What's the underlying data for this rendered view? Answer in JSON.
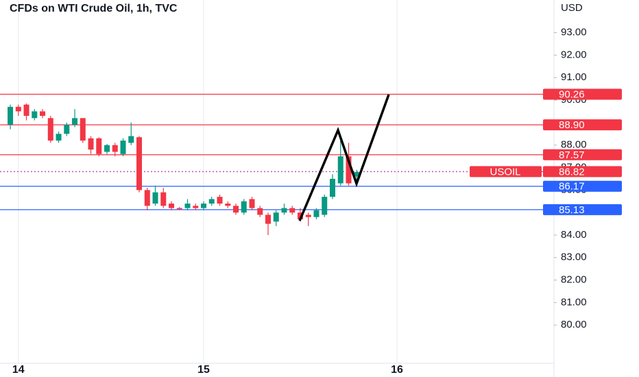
{
  "chart_data": {
    "type": "candlestick",
    "title": "CFDs on WTI Crude Oil, 1h, TVC",
    "currency": "USD",
    "up_color": "#089981",
    "down_color": "#f23645",
    "open": [
      88.9,
      89.7,
      89.8,
      89.2,
      89.5,
      89.2,
      88.2,
      88.5,
      88.9,
      89.2,
      88.3,
      88.3,
      87.7,
      88.0,
      87.6,
      88.1,
      88.35,
      86.0,
      85.4,
      85.9,
      85.4,
      85.2,
      85.2,
      85.3,
      85.2,
      85.4,
      85.7,
      85.4,
      85.3,
      85.0,
      85.6,
      85.2,
      84.9,
      84.6,
      85.0,
      85.2,
      85.0,
      84.9,
      84.8,
      84.9,
      85.7,
      86.3,
      87.5,
      86.6
    ],
    "high": [
      89.8,
      89.8,
      89.85,
      89.6,
      89.6,
      89.3,
      88.6,
      89.0,
      89.6,
      89.2,
      88.4,
      88.35,
      88.05,
      88.1,
      88.3,
      89.0,
      88.4,
      86.1,
      86.2,
      86.1,
      85.5,
      85.25,
      85.6,
      85.4,
      85.5,
      85.7,
      85.8,
      85.5,
      85.4,
      85.6,
      85.7,
      85.3,
      85.0,
      85.1,
      85.4,
      85.3,
      85.2,
      85.0,
      85.2,
      85.8,
      86.7,
      88.2,
      88.1,
      86.9
    ],
    "low": [
      88.7,
      89.3,
      89.1,
      89.1,
      89.2,
      88.1,
      88.1,
      88.4,
      88.8,
      88.1,
      87.6,
      87.5,
      87.6,
      87.5,
      87.5,
      88.0,
      85.9,
      85.1,
      85.3,
      85.2,
      85.1,
      85.1,
      85.1,
      85.1,
      85.1,
      85.3,
      85.3,
      85.2,
      84.9,
      84.9,
      85.1,
      84.8,
      84.0,
      84.4,
      84.9,
      84.9,
      84.6,
      84.4,
      84.7,
      84.8,
      85.6,
      86.2,
      86.2,
      86.4
    ],
    "close": [
      89.7,
      89.5,
      89.3,
      89.5,
      89.3,
      88.2,
      88.5,
      88.9,
      89.2,
      88.2,
      87.8,
      87.6,
      88.0,
      87.7,
      88.2,
      88.4,
      86.0,
      85.3,
      85.9,
      85.3,
      85.2,
      85.15,
      85.4,
      85.2,
      85.4,
      85.6,
      85.4,
      85.3,
      85.0,
      85.5,
      85.2,
      84.9,
      84.5,
      85.0,
      85.2,
      85.0,
      84.7,
      84.8,
      85.1,
      85.7,
      86.5,
      87.5,
      86.3,
      86.8
    ],
    "xlim": [
      -2.28,
      64.96
    ],
    "xticks": [
      {
        "value": 0,
        "label": "14"
      },
      {
        "value": 23,
        "label": "15"
      },
      {
        "value": 47,
        "label": "16"
      }
    ],
    "ylim": [
      78.3,
      94.45
    ],
    "yticks": [
      {
        "value": 80,
        "label": "80.00"
      },
      {
        "value": 81,
        "label": "81.00"
      },
      {
        "value": 82,
        "label": "82.00"
      },
      {
        "value": 83,
        "label": "83.00"
      },
      {
        "value": 84,
        "label": "84.00"
      },
      {
        "value": 86,
        "label": "86.00"
      },
      {
        "value": 87,
        "label": "87.00"
      },
      {
        "value": 88,
        "label": "88.00"
      },
      {
        "value": 90,
        "label": "90.00"
      },
      {
        "value": 91,
        "label": "91.00"
      },
      {
        "value": 92,
        "label": "92.00"
      },
      {
        "value": 93,
        "label": "93.00"
      }
    ],
    "price_lines": [
      {
        "value": 90.26,
        "color": "#f23645"
      },
      {
        "value": 88.9,
        "label": "88.90",
        "color": "#f23645"
      },
      {
        "value": 87.57,
        "color": "#f23645"
      },
      {
        "value": 86.17,
        "color": "#2962ff"
      },
      {
        "value": 85.13,
        "color": "#2962ff"
      }
    ],
    "last_price": {
      "value": 86.82,
      "symbol": "USOIL",
      "color": "#f23645",
      "line_color": "#b45ab4"
    }
  }
}
